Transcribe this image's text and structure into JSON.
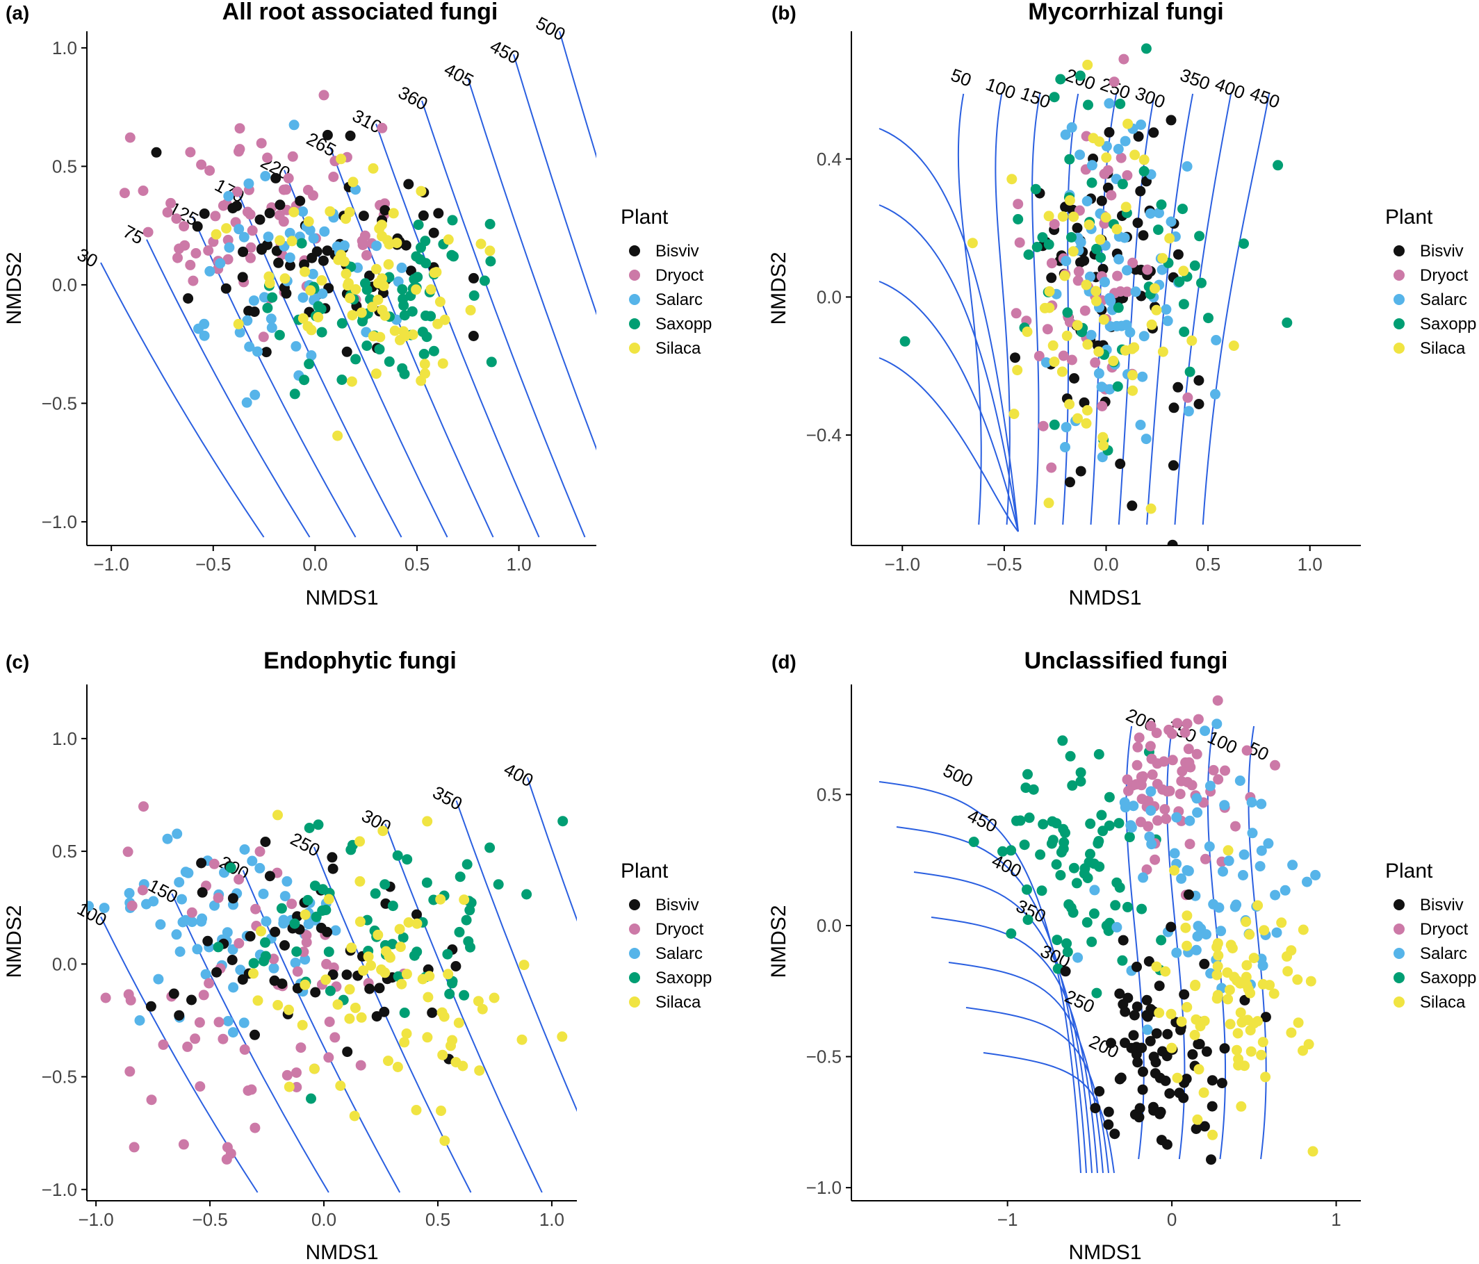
{
  "legend": {
    "title": "Plant",
    "entries": [
      {
        "name": "Bisviv",
        "color": "#111111"
      },
      {
        "name": "Dryoct",
        "color": "#cc79a7"
      },
      {
        "name": "Salarc",
        "color": "#56b4e9"
      },
      {
        "name": "Saxopp",
        "color": "#009e73"
      },
      {
        "name": "Silaca",
        "color": "#f0e442"
      }
    ]
  },
  "chart_data": [
    {
      "letter": "(a)",
      "title": "All root associated fungi",
      "type": "scatter",
      "xlabel": "NMDS1",
      "ylabel": "NMDS2",
      "xlim": [
        -1.12,
        1.38
      ],
      "ylim": [
        -1.1,
        1.07
      ],
      "xticks": [
        -1.0,
        -0.5,
        0.0,
        0.5,
        1.0
      ],
      "xtick_labels": [
        "−1.0",
        "−0.5",
        "0.0",
        "0.5",
        "1.0"
      ],
      "yticks": [
        -1.0,
        -0.5,
        0.0,
        0.5,
        1.0
      ],
      "ytick_labels": [
        "−1.0",
        "−0.5",
        "0.0",
        "0.5",
        "1.0"
      ],
      "legend_position": "right",
      "grid": false,
      "contour_labels": [
        "30",
        "75",
        "125",
        "170",
        "220",
        "265",
        "310",
        "360",
        "405",
        "450",
        "500"
      ],
      "clusters": [
        {
          "group": "Dryoct",
          "center": [
            -0.3,
            0.28
          ],
          "spread": [
            0.3,
            0.2
          ],
          "n": 75
        },
        {
          "group": "Bisviv",
          "center": [
            0.05,
            0.15
          ],
          "spread": [
            0.32,
            0.2
          ],
          "n": 70
        },
        {
          "group": "Salarc",
          "center": [
            -0.15,
            0.05
          ],
          "spread": [
            0.3,
            0.22
          ],
          "n": 55
        },
        {
          "group": "Saxopp",
          "center": [
            0.35,
            -0.1
          ],
          "spread": [
            0.28,
            0.2
          ],
          "n": 70
        },
        {
          "group": "Silaca",
          "center": [
            0.25,
            -0.05
          ],
          "spread": [
            0.3,
            0.25
          ],
          "n": 75
        }
      ]
    },
    {
      "letter": "(b)",
      "title": "Mycorrhizal fungi",
      "type": "scatter",
      "xlabel": "NMDS1",
      "ylabel": "NMDS2",
      "xlim": [
        -1.25,
        1.25
      ],
      "ylim": [
        -0.72,
        0.77
      ],
      "xticks": [
        -1.0,
        -0.5,
        0.0,
        0.5,
        1.0
      ],
      "xtick_labels": [
        "−1.0",
        "−0.5",
        "0.0",
        "0.5",
        "1.0"
      ],
      "yticks": [
        -0.4,
        0.0,
        0.4
      ],
      "ytick_labels": [
        "−0.4",
        "0.0",
        "0.4"
      ],
      "legend_position": "right",
      "grid": false,
      "contour_labels": [
        "50",
        "100",
        "150",
        "200",
        "250",
        "300",
        "350",
        "400",
        "450"
      ],
      "clusters": [
        {
          "group": "Bisviv",
          "center": [
            -0.02,
            0.05
          ],
          "spread": [
            0.2,
            0.25
          ],
          "n": 75
        },
        {
          "group": "Dryoct",
          "center": [
            -0.05,
            0.05
          ],
          "spread": [
            0.22,
            0.22
          ],
          "n": 50
        },
        {
          "group": "Salarc",
          "center": [
            0.05,
            0.05
          ],
          "spread": [
            0.2,
            0.25
          ],
          "n": 70
        },
        {
          "group": "Saxopp",
          "center": [
            0.0,
            0.0
          ],
          "spread": [
            0.3,
            0.3
          ],
          "n": 55
        },
        {
          "group": "Silaca",
          "center": [
            -0.1,
            -0.05
          ],
          "spread": [
            0.28,
            0.28
          ],
          "n": 60
        }
      ]
    },
    {
      "letter": "(c)",
      "title": "Endophytic fungi",
      "type": "scatter",
      "xlabel": "NMDS1",
      "ylabel": "NMDS2",
      "xlim": [
        -1.04,
        1.11
      ],
      "ylim": [
        -1.05,
        1.24
      ],
      "xticks": [
        -1.0,
        -0.5,
        0.0,
        0.5,
        1.0
      ],
      "xtick_labels": [
        "−1.0",
        "−0.5",
        "0.0",
        "0.5",
        "1.0"
      ],
      "yticks": [
        -1.0,
        -0.5,
        0.0,
        0.5,
        1.0
      ],
      "ytick_labels": [
        "−1.0",
        "−0.5",
        "0.0",
        "0.5",
        "1.0"
      ],
      "legend_position": "right",
      "grid": false,
      "contour_labels": [
        "100",
        "150",
        "200",
        "250",
        "300",
        "350",
        "400"
      ],
      "clusters": [
        {
          "group": "Salarc",
          "center": [
            -0.45,
            0.15
          ],
          "spread": [
            0.3,
            0.22
          ],
          "n": 75
        },
        {
          "group": "Dryoct",
          "center": [
            -0.4,
            -0.1
          ],
          "spread": [
            0.35,
            0.35
          ],
          "n": 65
        },
        {
          "group": "Bisviv",
          "center": [
            -0.15,
            0.0
          ],
          "spread": [
            0.3,
            0.25
          ],
          "n": 55
        },
        {
          "group": "Saxopp",
          "center": [
            0.3,
            0.15
          ],
          "spread": [
            0.35,
            0.25
          ],
          "n": 65
        },
        {
          "group": "Silaca",
          "center": [
            0.3,
            -0.1
          ],
          "spread": [
            0.3,
            0.3
          ],
          "n": 70
        }
      ]
    },
    {
      "letter": "(d)",
      "title": "Unclassified fungi",
      "type": "scatter",
      "xlabel": "NMDS1",
      "ylabel": "NMDS2",
      "xlim": [
        -1.95,
        1.15
      ],
      "ylim": [
        -1.05,
        0.92
      ],
      "xticks": [
        -1,
        0,
        1
      ],
      "xtick_labels": [
        "−1",
        "0",
        "1"
      ],
      "yticks": [
        -1.0,
        -0.5,
        0.0,
        0.5
      ],
      "ytick_labels": [
        "−1.0",
        "−0.5",
        "0.0",
        "0.5"
      ],
      "legend_position": "right",
      "grid": false,
      "contour_labels": [
        "500",
        "450",
        "400",
        "350",
        "300",
        "250",
        "200",
        "200",
        "150",
        "100",
        "50"
      ],
      "clusters": [
        {
          "group": "Saxopp",
          "center": [
            -0.6,
            0.2
          ],
          "spread": [
            0.22,
            0.25
          ],
          "n": 75
        },
        {
          "group": "Dryoct",
          "center": [
            0.05,
            0.55
          ],
          "spread": [
            0.18,
            0.15
          ],
          "n": 70
        },
        {
          "group": "Salarc",
          "center": [
            0.2,
            0.15
          ],
          "spread": [
            0.35,
            0.25
          ],
          "n": 70
        },
        {
          "group": "Bisviv",
          "center": [
            -0.1,
            -0.5
          ],
          "spread": [
            0.2,
            0.2
          ],
          "n": 80
        },
        {
          "group": "Silaca",
          "center": [
            0.35,
            -0.3
          ],
          "spread": [
            0.22,
            0.22
          ],
          "n": 80
        }
      ]
    }
  ]
}
